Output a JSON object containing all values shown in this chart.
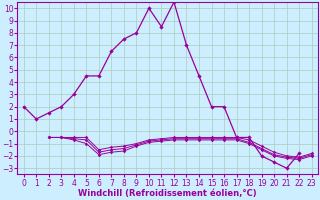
{
  "xlabel": "Windchill (Refroidissement éolien,°C)",
  "x_values": [
    0,
    1,
    2,
    3,
    4,
    5,
    6,
    7,
    8,
    9,
    10,
    11,
    12,
    13,
    14,
    15,
    16,
    17,
    18,
    19,
    20,
    21,
    22,
    23
  ],
  "y1": [
    2,
    1,
    1.5,
    2,
    3,
    4.5,
    4.5,
    6.5,
    7.5,
    8,
    10,
    8.5,
    10.5,
    7,
    4.5,
    2,
    2,
    -0.5,
    -0.5,
    -2,
    -2.5,
    -3,
    -1.8,
    null
  ],
  "y2": [
    null,
    null,
    -0.5,
    -0.5,
    -0.5,
    -0.5,
    -1.5,
    -1.3,
    -1.2,
    -1.0,
    -0.7,
    -0.6,
    -0.5,
    -0.5,
    -0.5,
    -0.5,
    -0.5,
    -0.5,
    -0.7,
    -1.2,
    -1.7,
    -2.0,
    -2.1,
    -1.8
  ],
  "y3": [
    null,
    null,
    -0.5,
    -0.5,
    -0.6,
    -0.7,
    -1.7,
    -1.5,
    -1.4,
    -1.1,
    -0.8,
    -0.7,
    -0.6,
    -0.6,
    -0.6,
    -0.6,
    -0.6,
    -0.6,
    -0.9,
    -1.4,
    -1.9,
    -2.1,
    -2.2,
    -1.9
  ],
  "y4": [
    null,
    null,
    -0.5,
    -0.5,
    -0.7,
    -1.0,
    -1.9,
    -1.7,
    -1.6,
    -1.2,
    -0.9,
    -0.8,
    -0.7,
    -0.7,
    -0.7,
    -0.7,
    -0.7,
    -0.7,
    -1.0,
    -1.5,
    -2.0,
    -2.2,
    -2.3,
    -2.0
  ],
  "color": "#990099",
  "bg_color": "#cceeff",
  "grid_color": "#aaccbb",
  "ylim": [
    -3.5,
    10.5
  ],
  "xlim": [
    -0.5,
    23.5
  ],
  "yticks": [
    10,
    9,
    8,
    7,
    6,
    5,
    4,
    3,
    2,
    1,
    0,
    -1,
    -2,
    -3
  ],
  "xticks": [
    0,
    1,
    2,
    3,
    4,
    5,
    6,
    7,
    8,
    9,
    10,
    11,
    12,
    13,
    14,
    15,
    16,
    17,
    18,
    19,
    20,
    21,
    22,
    23
  ],
  "tick_fontsize": 5.5,
  "xlabel_fontsize": 6.0
}
